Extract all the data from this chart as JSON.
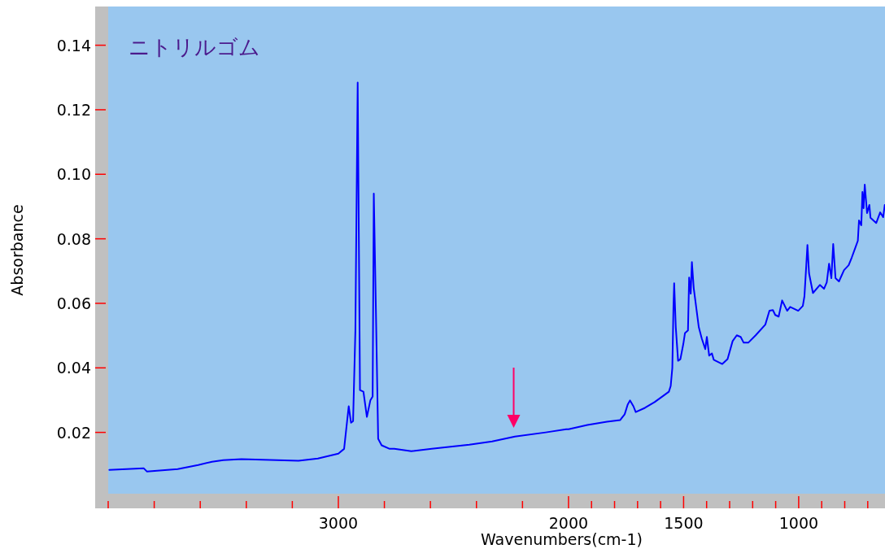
{
  "chart_data": {
    "type": "line",
    "title": "ニトリルゴム",
    "xlabel": "Wavenumbers(cm-1)",
    "ylabel": "Absorbance",
    "xlim": [
      4000,
      625
    ],
    "ylim": [
      0.001,
      0.152
    ],
    "xticks": [
      {
        "value": 4000,
        "label": null
      },
      {
        "value": 3800,
        "label": null
      },
      {
        "value": 3600,
        "label": null
      },
      {
        "value": 3400,
        "label": null
      },
      {
        "value": 3200,
        "label": null
      },
      3000,
      {
        "value": 2800,
        "label": null
      },
      {
        "value": 2600,
        "label": null
      },
      {
        "value": 2400,
        "label": null
      },
      {
        "value": 2200,
        "label": null
      },
      2000,
      {
        "value": 1900,
        "label": null
      },
      {
        "value": 1800,
        "label": null
      },
      {
        "value": 1700,
        "label": null
      },
      {
        "value": 1600,
        "label": null
      },
      1500,
      {
        "value": 1400,
        "label": null
      },
      {
        "value": 1300,
        "label": null
      },
      {
        "value": 1200,
        "label": null
      },
      {
        "value": 1100,
        "label": null
      },
      1000,
      {
        "value": 900,
        "label": null
      },
      {
        "value": 800,
        "label": null
      },
      {
        "value": 700,
        "label": null
      }
    ],
    "yticks": [
      {
        "value": 0.02,
        "label": "0.02"
      },
      {
        "value": 0.04,
        "label": "0.04"
      },
      {
        "value": 0.06,
        "label": "0.06"
      },
      {
        "value": 0.08,
        "label": "0.08"
      },
      {
        "value": 0.1,
        "label": "0.10"
      },
      {
        "value": 0.12,
        "label": "0.12"
      },
      {
        "value": 0.14,
        "label": "0.14"
      }
    ],
    "series": [
      {
        "color": "#0000ff",
        "x": [
          3995,
          3846,
          3832,
          3698,
          3609,
          3549,
          3500,
          3421,
          3173,
          3089,
          3000,
          2975,
          2955,
          2945,
          2936,
          2926,
          2916,
          2906,
          2891,
          2876,
          2861,
          2851,
          2846,
          2837,
          2827,
          2812,
          2777,
          2757,
          2683,
          2594,
          2431,
          2332,
          2233,
          2099,
          2010,
          2000,
          1918,
          1833,
          1776,
          1756,
          1743,
          1733,
          1718,
          1708,
          1668,
          1626,
          1593,
          1564,
          1556,
          1549,
          1544,
          1541,
          1534,
          1524,
          1514,
          1501,
          1494,
          1481,
          1476,
          1469,
          1464,
          1456,
          1446,
          1434,
          1421,
          1406,
          1399,
          1389,
          1377,
          1369,
          1332,
          1309,
          1287,
          1269,
          1252,
          1239,
          1219,
          1187,
          1145,
          1127,
          1112,
          1102,
          1087,
          1072,
          1050,
          1037,
          1002,
          982,
          975,
          967,
          962,
          955,
          938,
          908,
          890,
          878,
          868,
          858,
          850,
          840,
          825,
          803,
          783,
          770,
          753,
          743,
          738,
          728,
          723,
          718,
          713,
          703,
          693,
          688,
          663,
          646,
          633,
          626
        ],
        "values": [
          0.0084,
          0.0089,
          0.0079,
          0.0086,
          0.0099,
          0.0109,
          0.0114,
          0.0117,
          0.0112,
          0.0119,
          0.0134,
          0.0149,
          0.0281,
          0.023,
          0.0235,
          0.0516,
          0.1284,
          0.0331,
          0.0326,
          0.0248,
          0.0299,
          0.0311,
          0.094,
          0.0584,
          0.018,
          0.016,
          0.0149,
          0.0149,
          0.0142,
          0.0149,
          0.0162,
          0.0172,
          0.0187,
          0.02,
          0.021,
          0.021,
          0.0223,
          0.0233,
          0.0238,
          0.0256,
          0.0286,
          0.0299,
          0.0281,
          0.0263,
          0.0276,
          0.0294,
          0.0311,
          0.0326,
          0.0344,
          0.04,
          0.0592,
          0.0662,
          0.0526,
          0.0422,
          0.0427,
          0.0475,
          0.0508,
          0.0516,
          0.068,
          0.063,
          0.0728,
          0.0647,
          0.0592,
          0.0526,
          0.0491,
          0.0458,
          0.0496,
          0.0438,
          0.0445,
          0.0425,
          0.0412,
          0.0427,
          0.0483,
          0.0501,
          0.0496,
          0.0478,
          0.0478,
          0.0501,
          0.0534,
          0.0577,
          0.0579,
          0.0564,
          0.0559,
          0.0609,
          0.0577,
          0.0589,
          0.0577,
          0.0592,
          0.0622,
          0.0718,
          0.0781,
          0.0693,
          0.0632,
          0.0657,
          0.0645,
          0.0665,
          0.0723,
          0.0678,
          0.0784,
          0.0678,
          0.0668,
          0.0703,
          0.0718,
          0.0741,
          0.0774,
          0.0794,
          0.0857,
          0.0842,
          0.0945,
          0.0895,
          0.0968,
          0.088,
          0.0905,
          0.0865,
          0.0849,
          0.0882,
          0.0867,
          0.0905
        ]
      }
    ]
  }
}
